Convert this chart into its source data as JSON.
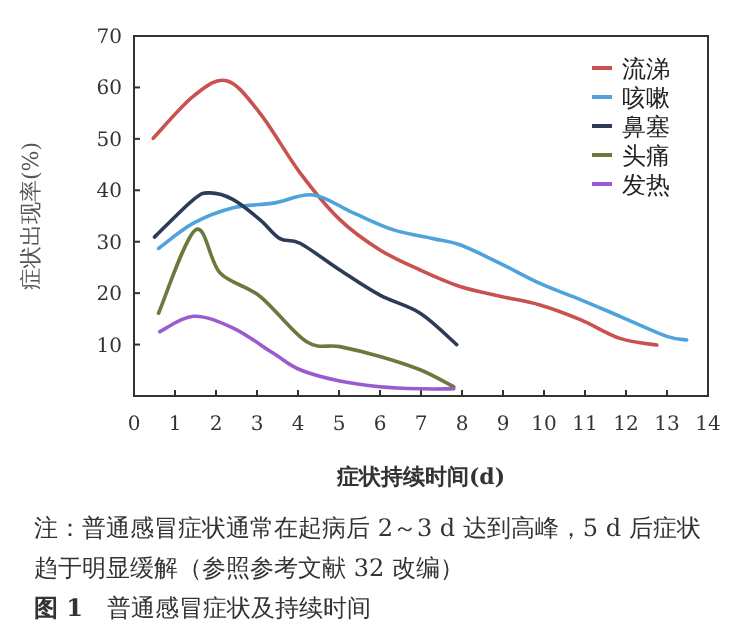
{
  "chart_data": {
    "type": "line",
    "xlabel": "症状持续时间(d)",
    "ylabel": "症状出现率(%)",
    "xlim": [
      0,
      14
    ],
    "ylim": [
      0,
      70
    ],
    "xticks": [
      0,
      1,
      2,
      3,
      4,
      5,
      6,
      7,
      8,
      9,
      10,
      11,
      12,
      13,
      14
    ],
    "yticks": [
      10,
      20,
      30,
      40,
      50,
      60,
      70
    ],
    "legend": "top right",
    "grid": false,
    "marker": "none",
    "line_style": "solid",
    "series": [
      {
        "name": "流涕",
        "color": "#c9514f",
        "x": [
          0.47,
          1.45,
          2.26,
          3.07,
          4.05,
          5.02,
          6.0,
          6.98,
          7.95,
          8.93,
          9.9,
          10.9,
          11.85,
          12.75
        ],
        "values": [
          50.1,
          58.3,
          61.3,
          55,
          43.4,
          34.3,
          28.4,
          24.5,
          21.3,
          19.4,
          17.7,
          14.8,
          11.2,
          9.9
        ]
      },
      {
        "name": "咳嗽",
        "color": "#4fa3dc",
        "x": [
          0.6,
          1.45,
          2.42,
          3.4,
          4.37,
          5.35,
          6.33,
          7.3,
          7.95,
          8.93,
          9.9,
          10.9,
          11.85,
          13.0,
          13.48
        ],
        "values": [
          28.7,
          33.6,
          36.6,
          37.5,
          39.1,
          35.6,
          32.3,
          30.6,
          29.4,
          25.8,
          21.9,
          18.7,
          15.5,
          11.6,
          10.9
        ]
      },
      {
        "name": "鼻塞",
        "color": "#2d3b58",
        "x": [
          0.5,
          1.45,
          1.85,
          2.42,
          3.07,
          3.56,
          4.05,
          5.02,
          6.0,
          6.98,
          7.87
        ],
        "values": [
          30.9,
          38.2,
          39.5,
          38.2,
          34.3,
          30.6,
          29.7,
          24.5,
          19.6,
          16.1,
          10
        ]
      },
      {
        "name": "头痛",
        "color": "#6b7a3c",
        "x": [
          0.6,
          1.5,
          2.1,
          3.07,
          4.2,
          5.02,
          6.0,
          6.98,
          7.8
        ],
        "values": [
          16.1,
          32.3,
          23.9,
          19.4,
          10.6,
          9.6,
          7.7,
          5.1,
          1.8
        ]
      },
      {
        "name": "发热",
        "color": "#9a5bd0",
        "x": [
          0.63,
          1.45,
          2.42,
          3.4,
          4.05,
          5.02,
          6.0,
          6.98,
          7.8
        ],
        "values": [
          12.5,
          15.5,
          13.2,
          8.3,
          5.1,
          2.9,
          1.8,
          1.4,
          1.4
        ]
      }
    ],
    "annotations": [
      "注：普通感冒症状通常在起病后 2～3 d 达到高峰，5 d 后症状趋于明显缓解（参照参考文献 32 改编）",
      "**图 1**　普通感冒症状及持续时间"
    ]
  }
}
